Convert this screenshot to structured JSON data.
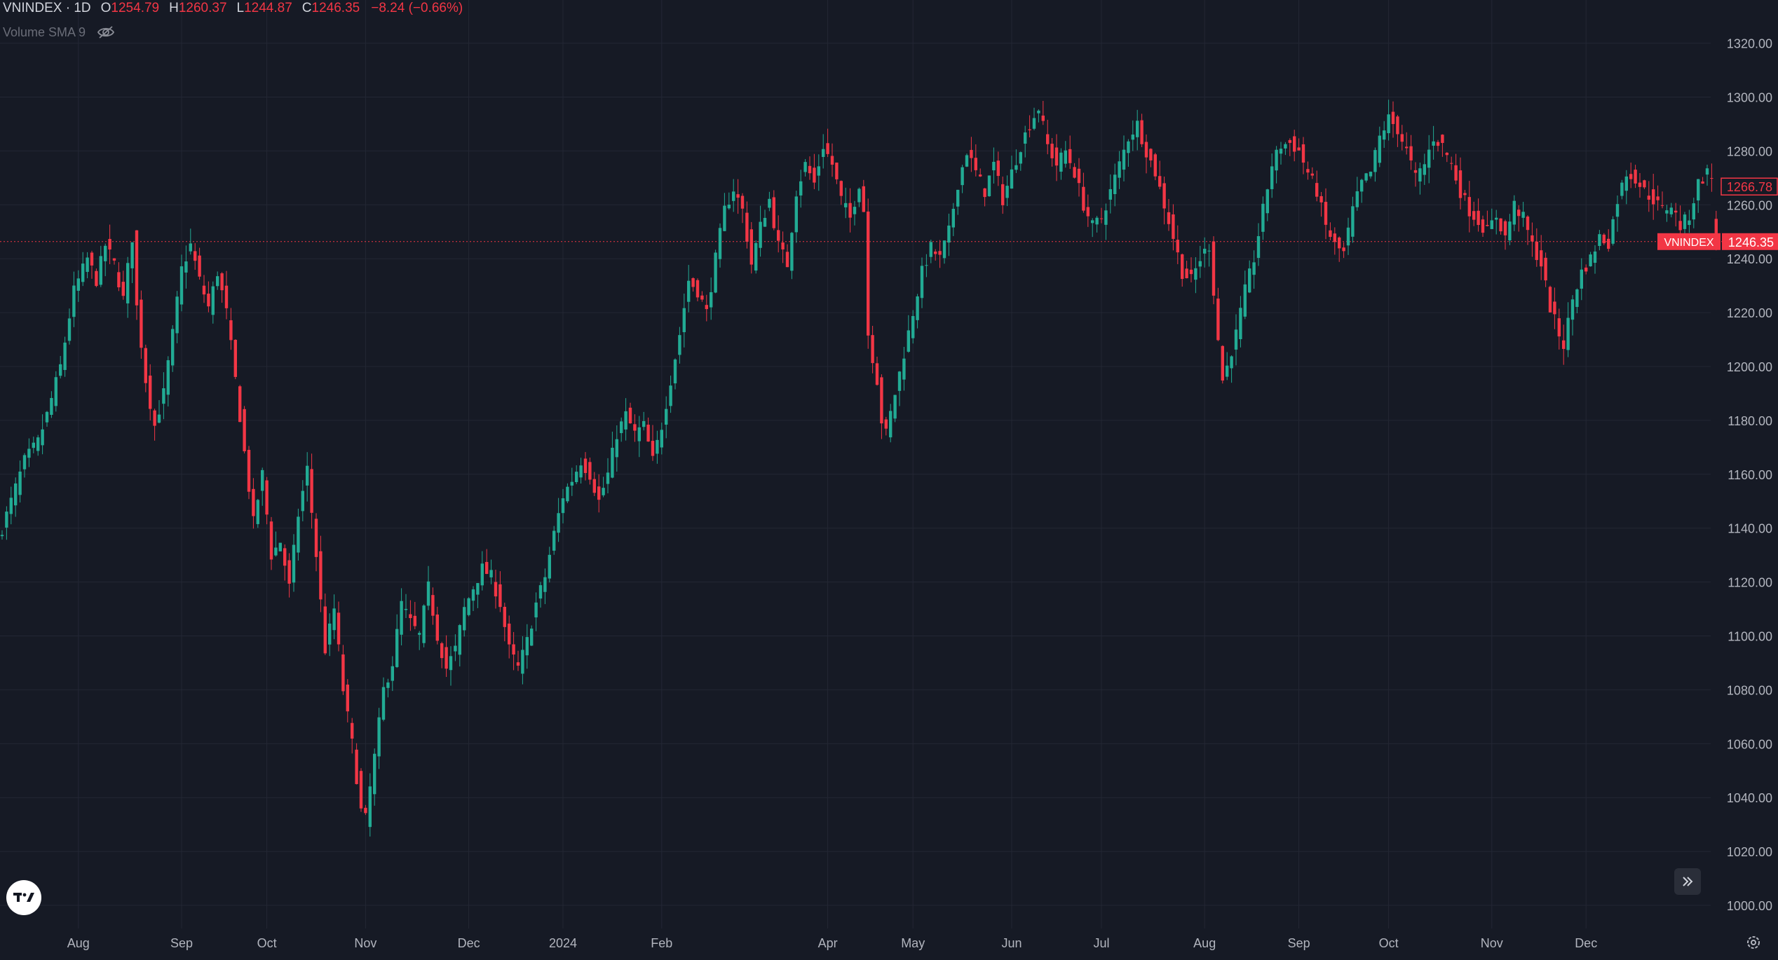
{
  "legend": {
    "symbol": "VNINDEX · 1D",
    "open_label": "O",
    "open": "1254.79",
    "high_label": "H",
    "high": "1260.37",
    "low_label": "L",
    "low": "1244.87",
    "close_label": "C",
    "close": "1246.35",
    "change": "−8.24 (−0.66%)"
  },
  "indicator": {
    "label": "Volume SMA 9"
  },
  "icons": {
    "visibility": "eye-off-icon",
    "logo": "tradingview-logo",
    "scroll": "chevron-double-right-icon",
    "settings": "gear-icon"
  },
  "colors": {
    "background": "#161a25",
    "up": "#22ab94",
    "down": "#f23645",
    "grid": "#232734",
    "text": "#d1d4dc"
  },
  "chart_data": {
    "type": "candlestick",
    "symbol": "VNINDEX",
    "interval": "1D",
    "ylim": [
      990,
      1330
    ],
    "yticks": [
      "1320.00",
      "1300.00",
      "1280.00",
      "1260.00",
      "1240.00",
      "1220.00",
      "1200.00",
      "1180.00",
      "1160.00",
      "1140.00",
      "1120.00",
      "1100.00",
      "1080.00",
      "1060.00",
      "1040.00",
      "1020.00",
      "1000.00"
    ],
    "xtick_labels": [
      "Aug",
      "Sep",
      "Oct",
      "Nov",
      "Dec",
      "2024",
      "Feb",
      "Apr",
      "May",
      "Jun",
      "Jul",
      "Aug",
      "Sep",
      "Oct",
      "Nov",
      "Dec"
    ],
    "xtick_index": [
      17,
      40,
      59,
      81,
      104,
      125,
      147,
      184,
      203,
      225,
      245,
      268,
      289,
      309,
      332,
      353
    ],
    "last_price": 1246.35,
    "last_price_tag": {
      "label": "VNINDEX",
      "value": "1246.35"
    },
    "marker_price": {
      "value": "1266.78"
    },
    "close_path": [
      [
        0,
        1140
      ],
      [
        3,
        1155
      ],
      [
        5,
        1165
      ],
      [
        8,
        1172
      ],
      [
        10,
        1182
      ],
      [
        13,
        1200
      ],
      [
        16,
        1228
      ],
      [
        19,
        1240
      ],
      [
        21,
        1232
      ],
      [
        23,
        1245
      ],
      [
        25,
        1238
      ],
      [
        27,
        1225
      ],
      [
        29,
        1248
      ],
      [
        30,
        1222
      ],
      [
        32,
        1195
      ],
      [
        34,
        1178
      ],
      [
        36,
        1190
      ],
      [
        38,
        1212
      ],
      [
        40,
        1236
      ],
      [
        42,
        1245
      ],
      [
        44,
        1232
      ],
      [
        46,
        1222
      ],
      [
        48,
        1235
      ],
      [
        50,
        1220
      ],
      [
        52,
        1195
      ],
      [
        54,
        1168
      ],
      [
        56,
        1142
      ],
      [
        58,
        1160
      ],
      [
        60,
        1130
      ],
      [
        62,
        1135
      ],
      [
        64,
        1118
      ],
      [
        66,
        1145
      ],
      [
        68,
        1162
      ],
      [
        70,
        1130
      ],
      [
        72,
        1095
      ],
      [
        74,
        1110
      ],
      [
        76,
        1080
      ],
      [
        78,
        1060
      ],
      [
        80,
        1035
      ],
      [
        81,
        1032
      ],
      [
        83,
        1055
      ],
      [
        85,
        1080
      ],
      [
        87,
        1090
      ],
      [
        89,
        1112
      ],
      [
        91,
        1105
      ],
      [
        93,
        1100
      ],
      [
        95,
        1118
      ],
      [
        97,
        1100
      ],
      [
        99,
        1088
      ],
      [
        101,
        1095
      ],
      [
        103,
        1110
      ],
      [
        105,
        1118
      ],
      [
        107,
        1125
      ],
      [
        109,
        1122
      ],
      [
        111,
        1112
      ],
      [
        113,
        1095
      ],
      [
        115,
        1088
      ],
      [
        117,
        1098
      ],
      [
        119,
        1112
      ],
      [
        121,
        1122
      ],
      [
        123,
        1138
      ],
      [
        125,
        1152
      ],
      [
        127,
        1158
      ],
      [
        129,
        1165
      ],
      [
        131,
        1160
      ],
      [
        133,
        1150
      ],
      [
        135,
        1160
      ],
      [
        137,
        1175
      ],
      [
        139,
        1182
      ],
      [
        141,
        1175
      ],
      [
        143,
        1178
      ],
      [
        145,
        1165
      ],
      [
        147,
        1178
      ],
      [
        149,
        1195
      ],
      [
        151,
        1212
      ],
      [
        153,
        1232
      ],
      [
        155,
        1228
      ],
      [
        157,
        1220
      ],
      [
        159,
        1240
      ],
      [
        161,
        1258
      ],
      [
        163,
        1266
      ],
      [
        165,
        1258
      ],
      [
        167,
        1238
      ],
      [
        169,
        1252
      ],
      [
        171,
        1262
      ],
      [
        173,
        1245
      ],
      [
        175,
        1238
      ],
      [
        177,
        1265
      ],
      [
        179,
        1275
      ],
      [
        181,
        1268
      ],
      [
        183,
        1282
      ],
      [
        185,
        1275
      ],
      [
        187,
        1262
      ],
      [
        189,
        1255
      ],
      [
        191,
        1268
      ],
      [
        192,
        1258
      ],
      [
        193,
        1212
      ],
      [
        195,
        1195
      ],
      [
        196,
        1180
      ],
      [
        197,
        1175
      ],
      [
        199,
        1190
      ],
      [
        201,
        1205
      ],
      [
        203,
        1220
      ],
      [
        205,
        1235
      ],
      [
        207,
        1244
      ],
      [
        209,
        1240
      ],
      [
        211,
        1250
      ],
      [
        213,
        1268
      ],
      [
        215,
        1280
      ],
      [
        217,
        1272
      ],
      [
        219,
        1265
      ],
      [
        221,
        1275
      ],
      [
        223,
        1262
      ],
      [
        225,
        1272
      ],
      [
        227,
        1282
      ],
      [
        229,
        1290
      ],
      [
        231,
        1296
      ],
      [
        233,
        1282
      ],
      [
        235,
        1275
      ],
      [
        237,
        1280
      ],
      [
        239,
        1272
      ],
      [
        241,
        1260
      ],
      [
        243,
        1252
      ],
      [
        245,
        1255
      ],
      [
        247,
        1265
      ],
      [
        249,
        1275
      ],
      [
        251,
        1285
      ],
      [
        253,
        1290
      ],
      [
        255,
        1280
      ],
      [
        257,
        1272
      ],
      [
        259,
        1260
      ],
      [
        261,
        1248
      ],
      [
        263,
        1235
      ],
      [
        265,
        1232
      ],
      [
        267,
        1240
      ],
      [
        269,
        1245
      ],
      [
        270,
        1228
      ],
      [
        271,
        1210
      ],
      [
        272,
        1195
      ],
      [
        273,
        1200
      ],
      [
        275,
        1212
      ],
      [
        277,
        1228
      ],
      [
        279,
        1240
      ],
      [
        281,
        1258
      ],
      [
        283,
        1275
      ],
      [
        285,
        1282
      ],
      [
        287,
        1283
      ],
      [
        289,
        1280
      ],
      [
        291,
        1272
      ],
      [
        293,
        1265
      ],
      [
        295,
        1252
      ],
      [
        297,
        1245
      ],
      [
        299,
        1242
      ],
      [
        301,
        1258
      ],
      [
        303,
        1268
      ],
      [
        305,
        1272
      ],
      [
        307,
        1285
      ],
      [
        309,
        1292
      ],
      [
        311,
        1288
      ],
      [
        313,
        1280
      ],
      [
        315,
        1270
      ],
      [
        317,
        1275
      ],
      [
        319,
        1285
      ],
      [
        321,
        1282
      ],
      [
        323,
        1275
      ],
      [
        325,
        1265
      ],
      [
        327,
        1258
      ],
      [
        329,
        1254
      ],
      [
        331,
        1250
      ],
      [
        333,
        1256
      ],
      [
        335,
        1248
      ],
      [
        337,
        1260
      ],
      [
        339,
        1255
      ],
      [
        341,
        1245
      ],
      [
        343,
        1238
      ],
      [
        345,
        1222
      ],
      [
        347,
        1212
      ],
      [
        348,
        1208
      ],
      [
        350,
        1225
      ],
      [
        352,
        1235
      ],
      [
        354,
        1240
      ],
      [
        356,
        1248
      ],
      [
        358,
        1246
      ],
      [
        360,
        1262
      ],
      [
        362,
        1272
      ],
      [
        364,
        1270
      ],
      [
        366,
        1265
      ],
      [
        368,
        1262
      ],
      [
        370,
        1258
      ],
      [
        372,
        1260
      ],
      [
        374,
        1252
      ],
      [
        376,
        1256
      ],
      [
        378,
        1268
      ],
      [
        380,
        1272
      ],
      [
        381,
        1270
      ],
      [
        382,
        1266
      ]
    ]
  }
}
